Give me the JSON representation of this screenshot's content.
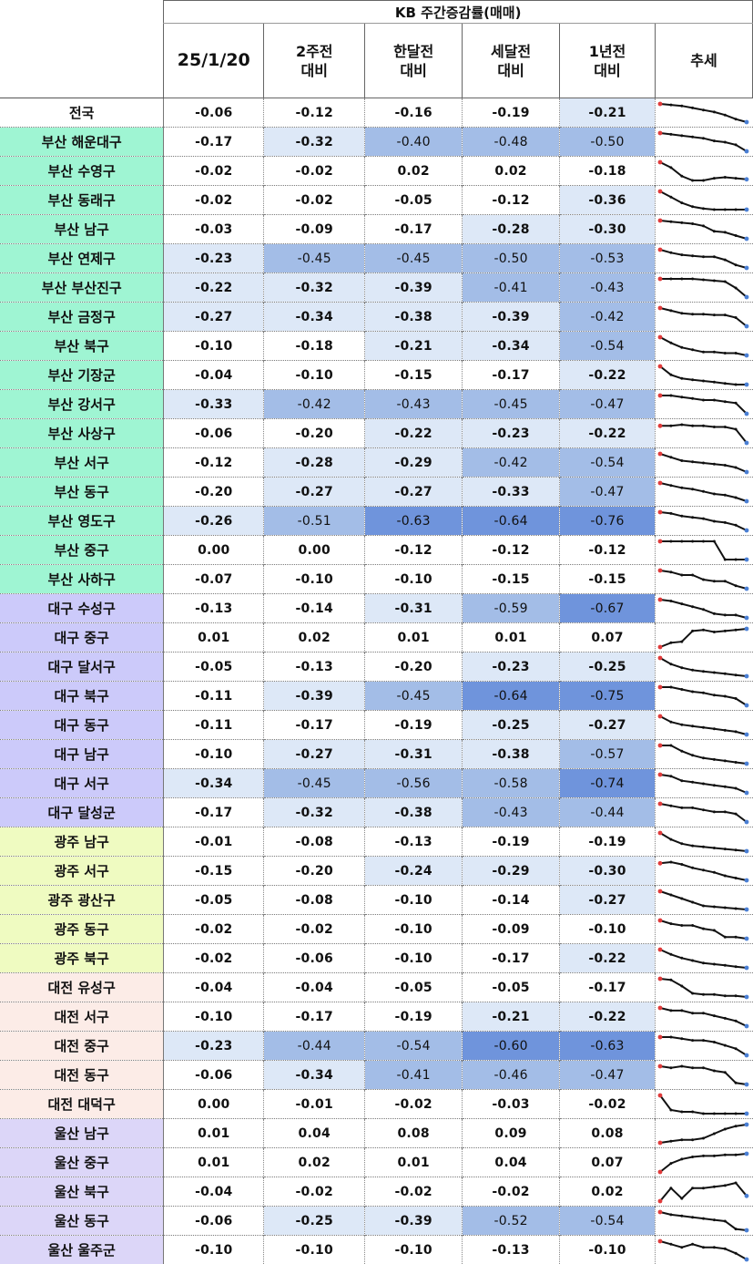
{
  "table": {
    "title": "KB 주간증감률(매매)",
    "columns": [
      "25/1/20",
      "2주전\n대비",
      "한달전\n대비",
      "세달전\n대비",
      "1년전\n대비",
      "추세"
    ]
  },
  "colors": {
    "group_nation": "#ffffff",
    "group_busan": "#9ff5d3",
    "group_daegu": "#cccafa",
    "group_gwangju": "#effbc1",
    "group_daejeon": "#fcece7",
    "group_ulsan": "#dcd6f8",
    "heat_light": "#dde8f7",
    "heat_mid": "#a3bde7",
    "heat_dark": "#6f94dc",
    "trend_line": "#111111",
    "trend_start": "#e03a3a",
    "trend_end": "#4a7fd4"
  },
  "chart_data": {
    "type": "table",
    "title": "KB 주간증감률(매매)",
    "columns": [
      "25/1/20",
      "2주전 대비",
      "한달전 대비",
      "세달전 대비",
      "1년전 대비"
    ],
    "rows": [
      {
        "region": "전국",
        "group": "nation",
        "values": [
          "-0.06",
          "-0.12",
          "-0.16",
          "-0.19",
          "-0.21"
        ],
        "trend": [
          -0.04,
          -0.05,
          -0.06,
          -0.08,
          -0.1,
          -0.12,
          -0.15,
          -0.19,
          -0.22
        ]
      },
      {
        "region": "부산 해운대구",
        "group": "busan",
        "values": [
          "-0.17",
          "-0.32",
          "-0.40",
          "-0.48",
          "-0.50"
        ],
        "trend": [
          -0.06,
          -0.07,
          -0.08,
          -0.09,
          -0.1,
          -0.12,
          -0.13,
          -0.15,
          -0.2
        ]
      },
      {
        "region": "부산 수영구",
        "group": "busan",
        "values": [
          "-0.02",
          "-0.02",
          "0.02",
          "0.02",
          "-0.18"
        ],
        "trend": [
          0.03,
          -0.02,
          -0.1,
          -0.14,
          -0.14,
          -0.12,
          -0.11,
          -0.12,
          -0.13
        ]
      },
      {
        "region": "부산 동래구",
        "group": "busan",
        "values": [
          "-0.02",
          "-0.02",
          "-0.05",
          "-0.12",
          "-0.36"
        ],
        "trend": [
          -0.02,
          -0.08,
          -0.14,
          -0.18,
          -0.2,
          -0.21,
          -0.21,
          -0.21,
          -0.21
        ]
      },
      {
        "region": "부산 남구",
        "group": "busan",
        "values": [
          "-0.03",
          "-0.09",
          "-0.17",
          "-0.28",
          "-0.30"
        ],
        "trend": [
          -0.02,
          -0.03,
          -0.04,
          -0.05,
          -0.07,
          -0.12,
          -0.13,
          -0.16,
          -0.19
        ]
      },
      {
        "region": "부산 연제구",
        "group": "busan",
        "values": [
          "-0.23",
          "-0.45",
          "-0.45",
          "-0.50",
          "-0.53"
        ],
        "trend": [
          -0.1,
          -0.13,
          -0.15,
          -0.16,
          -0.17,
          -0.17,
          -0.2,
          -0.25,
          -0.28
        ]
      },
      {
        "region": "부산 부산진구",
        "group": "busan",
        "values": [
          "-0.22",
          "-0.32",
          "-0.39",
          "-0.41",
          "-0.43"
        ],
        "trend": [
          -0.05,
          -0.05,
          -0.05,
          -0.05,
          -0.06,
          -0.07,
          -0.08,
          -0.15,
          -0.25
        ]
      },
      {
        "region": "부산 금정구",
        "group": "busan",
        "values": [
          "-0.27",
          "-0.34",
          "-0.38",
          "-0.39",
          "-0.42"
        ],
        "trend": [
          -0.05,
          -0.08,
          -0.11,
          -0.12,
          -0.12,
          -0.13,
          -0.13,
          -0.16,
          -0.26
        ]
      },
      {
        "region": "부산 북구",
        "group": "busan",
        "values": [
          "-0.10",
          "-0.18",
          "-0.21",
          "-0.34",
          "-0.54"
        ],
        "trend": [
          -0.05,
          -0.1,
          -0.14,
          -0.16,
          -0.18,
          -0.18,
          -0.19,
          -0.19,
          -0.21
        ]
      },
      {
        "region": "부산 기장군",
        "group": "busan",
        "values": [
          "-0.04",
          "-0.10",
          "-0.15",
          "-0.17",
          "-0.22"
        ],
        "trend": [
          -0.02,
          -0.09,
          -0.12,
          -0.13,
          -0.14,
          -0.15,
          -0.16,
          -0.17,
          -0.17
        ]
      },
      {
        "region": "부산 강서구",
        "group": "busan",
        "values": [
          "-0.33",
          "-0.42",
          "-0.43",
          "-0.45",
          "-0.47"
        ],
        "trend": [
          -0.05,
          -0.05,
          -0.06,
          -0.07,
          -0.08,
          -0.08,
          -0.09,
          -0.1,
          -0.17
        ]
      },
      {
        "region": "부산 사상구",
        "group": "busan",
        "values": [
          "-0.06",
          "-0.20",
          "-0.22",
          "-0.23",
          "-0.22"
        ],
        "trend": [
          -0.05,
          -0.05,
          -0.04,
          -0.05,
          -0.05,
          -0.06,
          -0.06,
          -0.08,
          -0.2
        ]
      },
      {
        "region": "부산 서구",
        "group": "busan",
        "values": [
          "-0.12",
          "-0.28",
          "-0.29",
          "-0.42",
          "-0.54"
        ],
        "trend": [
          -0.05,
          -0.08,
          -0.11,
          -0.12,
          -0.13,
          -0.14,
          -0.15,
          -0.17,
          -0.21
        ]
      },
      {
        "region": "부산 동구",
        "group": "busan",
        "values": [
          "-0.20",
          "-0.27",
          "-0.27",
          "-0.33",
          "-0.47"
        ],
        "trend": [
          -0.05,
          -0.07,
          -0.09,
          -0.1,
          -0.12,
          -0.14,
          -0.15,
          -0.17,
          -0.2
        ]
      },
      {
        "region": "부산 영도구",
        "group": "busan",
        "values": [
          "-0.26",
          "-0.51",
          "-0.63",
          "-0.64",
          "-0.76"
        ],
        "trend": [
          -0.05,
          -0.06,
          -0.08,
          -0.09,
          -0.1,
          -0.12,
          -0.13,
          -0.15,
          -0.19
        ]
      },
      {
        "region": "부산 중구",
        "group": "busan",
        "values": [
          "0.00",
          "0.00",
          "-0.12",
          "-0.12",
          "-0.12"
        ],
        "trend": [
          0.0,
          0.0,
          0.0,
          0.0,
          0.0,
          0.0,
          -0.12,
          -0.12,
          -0.12
        ]
      },
      {
        "region": "부산 사하구",
        "group": "busan",
        "values": [
          "-0.07",
          "-0.10",
          "-0.10",
          "-0.15",
          "-0.15"
        ],
        "trend": [
          -0.03,
          -0.04,
          -0.06,
          -0.06,
          -0.09,
          -0.1,
          -0.1,
          -0.13,
          -0.15
        ]
      },
      {
        "region": "대구 수성구",
        "group": "daegu",
        "values": [
          "-0.13",
          "-0.14",
          "-0.31",
          "-0.59",
          "-0.67"
        ],
        "trend": [
          -0.05,
          -0.06,
          -0.08,
          -0.1,
          -0.12,
          -0.15,
          -0.16,
          -0.16,
          -0.18
        ]
      },
      {
        "region": "대구 중구",
        "group": "daegu",
        "values": [
          "0.01",
          "0.02",
          "0.01",
          "0.01",
          "0.07"
        ],
        "trend": [
          -0.1,
          -0.06,
          -0.05,
          0.05,
          0.06,
          0.04,
          0.05,
          0.06,
          0.07
        ]
      },
      {
        "region": "대구 달서구",
        "group": "daegu",
        "values": [
          "-0.05",
          "-0.13",
          "-0.20",
          "-0.23",
          "-0.25"
        ],
        "trend": [
          -0.05,
          -0.1,
          -0.13,
          -0.15,
          -0.16,
          -0.17,
          -0.18,
          -0.19,
          -0.2
        ]
      },
      {
        "region": "대구 북구",
        "group": "daegu",
        "values": [
          "-0.11",
          "-0.39",
          "-0.45",
          "-0.64",
          "-0.75"
        ],
        "trend": [
          -0.05,
          -0.05,
          -0.07,
          -0.09,
          -0.1,
          -0.12,
          -0.13,
          -0.15,
          -0.21
        ]
      },
      {
        "region": "대구 동구",
        "group": "daegu",
        "values": [
          "-0.11",
          "-0.17",
          "-0.19",
          "-0.25",
          "-0.27"
        ],
        "trend": [
          -0.05,
          -0.09,
          -0.11,
          -0.12,
          -0.13,
          -0.14,
          -0.15,
          -0.16,
          -0.18
        ]
      },
      {
        "region": "대구 남구",
        "group": "daegu",
        "values": [
          "-0.10",
          "-0.27",
          "-0.31",
          "-0.38",
          "-0.57"
        ],
        "trend": [
          -0.05,
          -0.05,
          -0.09,
          -0.12,
          -0.14,
          -0.15,
          -0.16,
          -0.17,
          -0.18
        ]
      },
      {
        "region": "대구 서구",
        "group": "daegu",
        "values": [
          "-0.34",
          "-0.45",
          "-0.56",
          "-0.58",
          "-0.74"
        ],
        "trend": [
          -0.05,
          -0.06,
          -0.09,
          -0.1,
          -0.11,
          -0.12,
          -0.13,
          -0.14,
          -0.17
        ]
      },
      {
        "region": "대구 달성군",
        "group": "daegu",
        "values": [
          "-0.17",
          "-0.32",
          "-0.38",
          "-0.43",
          "-0.44"
        ],
        "trend": [
          -0.05,
          -0.06,
          -0.07,
          -0.07,
          -0.08,
          -0.09,
          -0.09,
          -0.1,
          -0.14
        ]
      },
      {
        "region": "광주 남구",
        "group": "gwangju",
        "values": [
          "-0.01",
          "-0.08",
          "-0.13",
          "-0.19",
          "-0.19"
        ],
        "trend": [
          -0.02,
          -0.08,
          -0.12,
          -0.14,
          -0.15,
          -0.16,
          -0.17,
          -0.18,
          -0.19
        ]
      },
      {
        "region": "광주 서구",
        "group": "gwangju",
        "values": [
          "-0.15",
          "-0.20",
          "-0.24",
          "-0.29",
          "-0.30"
        ],
        "trend": [
          -0.1,
          -0.09,
          -0.11,
          -0.14,
          -0.16,
          -0.18,
          -0.21,
          -0.23,
          -0.25
        ]
      },
      {
        "region": "광주 광산구",
        "group": "gwangju",
        "values": [
          "-0.05",
          "-0.08",
          "-0.10",
          "-0.14",
          "-0.27"
        ],
        "trend": [
          -0.02,
          -0.06,
          -0.1,
          -0.14,
          -0.18,
          -0.19,
          -0.2,
          -0.21,
          -0.22
        ]
      },
      {
        "region": "광주 동구",
        "group": "gwangju",
        "values": [
          "-0.02",
          "-0.02",
          "-0.10",
          "-0.09",
          "-0.10"
        ],
        "trend": [
          -0.02,
          -0.04,
          -0.05,
          -0.05,
          -0.07,
          -0.08,
          -0.12,
          -0.12,
          -0.13
        ]
      },
      {
        "region": "광주 북구",
        "group": "gwangju",
        "values": [
          "-0.02",
          "-0.06",
          "-0.10",
          "-0.17",
          "-0.22"
        ],
        "trend": [
          -0.02,
          -0.06,
          -0.09,
          -0.11,
          -0.13,
          -0.14,
          -0.15,
          -0.16,
          -0.17
        ]
      },
      {
        "region": "대전 유성구",
        "group": "daejeon",
        "values": [
          "-0.04",
          "-0.04",
          "-0.05",
          "-0.05",
          "-0.17"
        ],
        "trend": [
          -0.02,
          -0.03,
          -0.08,
          -0.14,
          -0.15,
          -0.15,
          -0.16,
          -0.16,
          -0.17
        ]
      },
      {
        "region": "대전 서구",
        "group": "daejeon",
        "values": [
          "-0.10",
          "-0.17",
          "-0.19",
          "-0.21",
          "-0.22"
        ],
        "trend": [
          -0.05,
          -0.06,
          -0.06,
          -0.07,
          -0.07,
          -0.08,
          -0.09,
          -0.1,
          -0.12
        ]
      },
      {
        "region": "대전 중구",
        "group": "daejeon",
        "values": [
          "-0.23",
          "-0.44",
          "-0.54",
          "-0.60",
          "-0.63"
        ],
        "trend": [
          -0.05,
          -0.05,
          -0.06,
          -0.07,
          -0.07,
          -0.08,
          -0.1,
          -0.12,
          -0.16
        ]
      },
      {
        "region": "대전 동구",
        "group": "daejeon",
        "values": [
          "-0.06",
          "-0.34",
          "-0.41",
          "-0.46",
          "-0.47"
        ],
        "trend": [
          -0.05,
          -0.06,
          -0.05,
          -0.06,
          -0.06,
          -0.08,
          -0.09,
          -0.16,
          -0.17
        ]
      },
      {
        "region": "대전 대덕구",
        "group": "daejeon",
        "values": [
          "0.00",
          "-0.01",
          "-0.02",
          "-0.03",
          "-0.02"
        ],
        "trend": [
          0.02,
          -0.06,
          -0.07,
          -0.07,
          -0.08,
          -0.08,
          -0.08,
          -0.08,
          -0.08
        ]
      },
      {
        "region": "울산 남구",
        "group": "ulsan",
        "values": [
          "0.01",
          "0.04",
          "0.08",
          "0.09",
          "0.08"
        ],
        "trend": [
          -0.04,
          -0.03,
          -0.02,
          -0.02,
          -0.01,
          0.02,
          0.05,
          0.07,
          0.08
        ]
      },
      {
        "region": "울산 중구",
        "group": "ulsan",
        "values": [
          "0.01",
          "0.02",
          "0.01",
          "0.04",
          "0.07"
        ],
        "trend": [
          -0.1,
          -0.02,
          0.02,
          0.04,
          0.05,
          0.05,
          0.06,
          0.06,
          0.07
        ]
      },
      {
        "region": "울산 북구",
        "group": "ulsan",
        "values": [
          "-0.04",
          "-0.02",
          "-0.02",
          "-0.02",
          "0.02"
        ],
        "trend": [
          -0.1,
          0.0,
          -0.08,
          0.0,
          0.0,
          0.01,
          0.02,
          0.04,
          -0.06
        ]
      },
      {
        "region": "울산 동구",
        "group": "ulsan",
        "values": [
          "-0.06",
          "-0.25",
          "-0.39",
          "-0.52",
          "-0.54"
        ],
        "trend": [
          -0.05,
          -0.07,
          -0.08,
          -0.09,
          -0.1,
          -0.11,
          -0.12,
          -0.18,
          -0.19
        ]
      },
      {
        "region": "울산 울주군",
        "group": "ulsan",
        "values": [
          "-0.10",
          "-0.10",
          "-0.10",
          "-0.13",
          "-0.10"
        ],
        "trend": [
          -0.05,
          -0.07,
          -0.09,
          -0.07,
          -0.09,
          -0.09,
          -0.1,
          -0.13,
          -0.17
        ]
      }
    ]
  }
}
